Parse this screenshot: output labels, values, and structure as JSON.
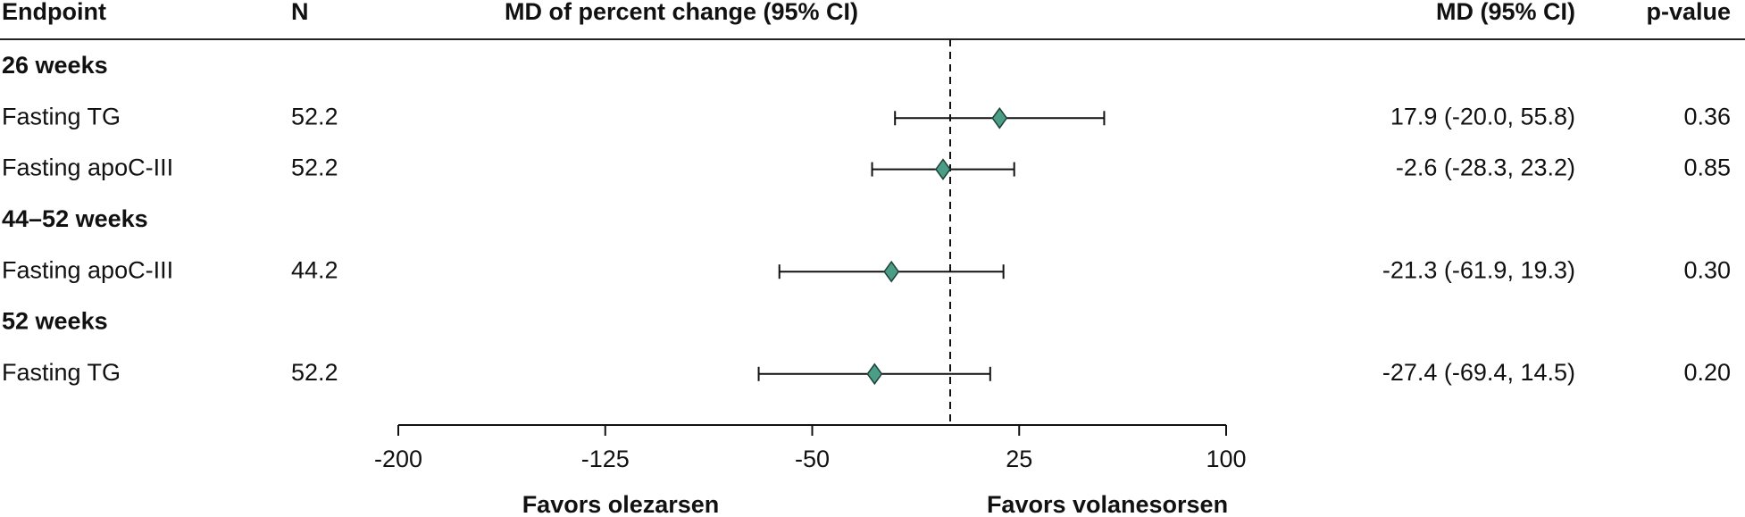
{
  "chart_data": {
    "type": "forest",
    "headers": {
      "endpoint": "Endpoint",
      "n": "N",
      "plot": "MD of percent change (95% CI)",
      "md": "MD (95% CI)",
      "p": "p-value"
    },
    "rows": [
      {
        "group": "26 weeks"
      },
      {
        "label": "Fasting TG",
        "n": 52.2,
        "md": 17.9,
        "lo": -20.0,
        "hi": 55.8,
        "md_label": "17.9 (-20.0, 55.8)",
        "p": "0.36"
      },
      {
        "label": "Fasting apoC-III",
        "n": 52.2,
        "md": -2.6,
        "lo": -28.3,
        "hi": 23.2,
        "md_label": "-2.6 (-28.3, 23.2)",
        "p": "0.85"
      },
      {
        "group": "44–52 weeks"
      },
      {
        "label": "Fasting apoC-III",
        "n": 44.2,
        "md": -21.3,
        "lo": -61.9,
        "hi": 19.3,
        "md_label": "-21.3 (-61.9, 19.3)",
        "p": "0.30"
      },
      {
        "group": "52 weeks"
      },
      {
        "label": "Fasting TG",
        "n": 52.2,
        "md": -27.4,
        "lo": -69.4,
        "hi": 14.5,
        "md_label": "-27.4 (-69.4, 14.5)",
        "p": "0.20"
      }
    ],
    "xlim": [
      -200,
      100
    ],
    "xticks": [
      -200,
      -125,
      -50,
      25,
      100
    ],
    "reference": 0,
    "color": "#4a9e87",
    "favors_left": "Favors olezarsen",
    "favors_right": "Favors volanesorsen"
  }
}
